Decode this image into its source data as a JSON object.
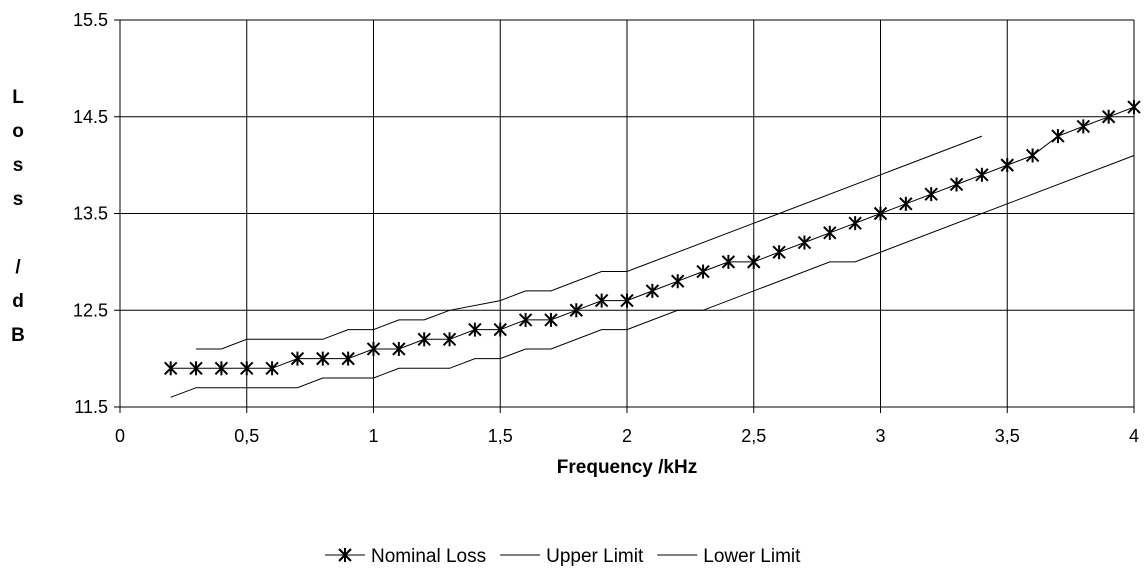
{
  "chart_data": {
    "type": "line",
    "title": "",
    "xlabel": "Frequency /kHz",
    "ylabel": "Loss / dB",
    "ylabel_lines": [
      "L",
      "o",
      "s",
      "s",
      "",
      "/",
      "d",
      "B"
    ],
    "xlim": [
      0,
      4
    ],
    "ylim": [
      11.5,
      15.5
    ],
    "x_ticks": [
      0,
      0.5,
      1,
      1.5,
      2,
      2.5,
      3,
      3.5,
      4
    ],
    "x_tick_labels": [
      "0",
      "0,5",
      "1",
      "1,5",
      "2",
      "2,5",
      "3",
      "3,5",
      "4"
    ],
    "y_ticks": [
      11.5,
      12.5,
      13.5,
      14.5,
      15.5
    ],
    "y_tick_labels": [
      "11.5",
      "12.5",
      "13.5",
      "14.5",
      "15.5"
    ],
    "grid": true,
    "legend_position": "bottom",
    "colors": {
      "line": "#000000",
      "grid": "#000000",
      "background": "#ffffff"
    },
    "series": [
      {
        "name": "Nominal Loss",
        "marker": "star",
        "points": [
          [
            0.2,
            11.9
          ],
          [
            0.3,
            11.9
          ],
          [
            0.4,
            11.9
          ],
          [
            0.5,
            11.9
          ],
          [
            0.6,
            11.9
          ],
          [
            0.7,
            12.0
          ],
          [
            0.8,
            12.0
          ],
          [
            0.9,
            12.0
          ],
          [
            1.0,
            12.1
          ],
          [
            1.1,
            12.1
          ],
          [
            1.2,
            12.2
          ],
          [
            1.3,
            12.2
          ],
          [
            1.4,
            12.3
          ],
          [
            1.5,
            12.3
          ],
          [
            1.6,
            12.4
          ],
          [
            1.7,
            12.4
          ],
          [
            1.8,
            12.5
          ],
          [
            1.9,
            12.6
          ],
          [
            2.0,
            12.6
          ],
          [
            2.1,
            12.7
          ],
          [
            2.2,
            12.8
          ],
          [
            2.3,
            12.9
          ],
          [
            2.4,
            13.0
          ],
          [
            2.5,
            13.0
          ],
          [
            2.6,
            13.1
          ],
          [
            2.7,
            13.2
          ],
          [
            2.8,
            13.3
          ],
          [
            2.9,
            13.4
          ],
          [
            3.0,
            13.5
          ],
          [
            3.1,
            13.6
          ],
          [
            3.2,
            13.7
          ],
          [
            3.3,
            13.8
          ],
          [
            3.4,
            13.9
          ],
          [
            3.5,
            14.0
          ],
          [
            3.6,
            14.1
          ],
          [
            3.7,
            14.3
          ],
          [
            3.8,
            14.4
          ],
          [
            3.9,
            14.5
          ],
          [
            4.0,
            14.6
          ]
        ]
      },
      {
        "name": "Upper Limit",
        "marker": "none",
        "points": [
          [
            0.3,
            12.1
          ],
          [
            0.4,
            12.1
          ],
          [
            0.5,
            12.2
          ],
          [
            0.8,
            12.2
          ],
          [
            0.9,
            12.3
          ],
          [
            1.0,
            12.3
          ],
          [
            1.1,
            12.4
          ],
          [
            1.2,
            12.4
          ],
          [
            1.3,
            12.5
          ],
          [
            1.5,
            12.6
          ],
          [
            1.6,
            12.7
          ],
          [
            1.7,
            12.7
          ],
          [
            1.9,
            12.9
          ],
          [
            2.0,
            12.9
          ],
          [
            2.5,
            13.4
          ],
          [
            3.0,
            13.9
          ],
          [
            3.4,
            14.3
          ]
        ]
      },
      {
        "name": "Lower Limit",
        "marker": "none",
        "points": [
          [
            0.2,
            11.6
          ],
          [
            0.3,
            11.7
          ],
          [
            0.7,
            11.7
          ],
          [
            0.8,
            11.8
          ],
          [
            1.0,
            11.8
          ],
          [
            1.1,
            11.9
          ],
          [
            1.3,
            11.9
          ],
          [
            1.4,
            12.0
          ],
          [
            1.5,
            12.0
          ],
          [
            1.6,
            12.1
          ],
          [
            1.7,
            12.1
          ],
          [
            1.9,
            12.3
          ],
          [
            2.0,
            12.3
          ],
          [
            2.2,
            12.5
          ],
          [
            2.3,
            12.5
          ],
          [
            2.8,
            13.0
          ],
          [
            2.9,
            13.0
          ],
          [
            3.5,
            13.6
          ],
          [
            4.0,
            14.1
          ]
        ]
      }
    ]
  }
}
